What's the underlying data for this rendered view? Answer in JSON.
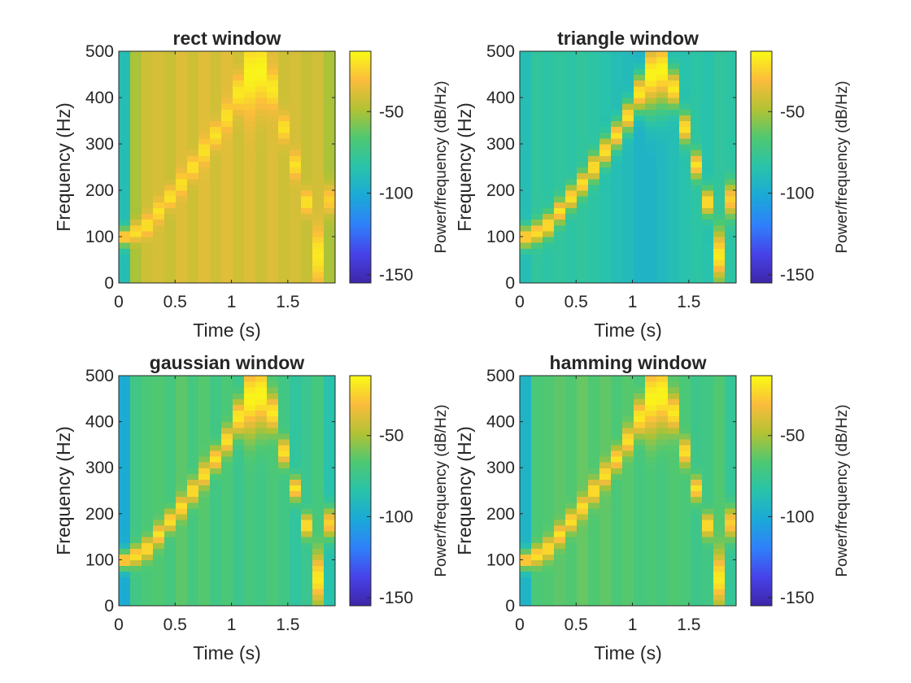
{
  "chart_data": [
    {
      "type": "heatmap",
      "title": "rect window",
      "xlabel": "Time (s)",
      "ylabel": "Frequency (Hz)",
      "xlim": [
        0,
        1.92
      ],
      "ylim": [
        0,
        500
      ],
      "xticks": [
        0,
        0.5,
        1,
        1.5
      ],
      "xtick_labels": [
        "0",
        "0.5",
        "1",
        "1.5"
      ],
      "yticks": [
        0,
        100,
        200,
        300,
        400,
        500
      ],
      "ytick_labels": [
        "0",
        "100",
        "200",
        "300",
        "400",
        "500"
      ],
      "colorbar": {
        "label": "Power/frequency (dB/Hz)",
        "range": [
          -155,
          -13
        ],
        "ticks": [
          -50,
          -100,
          -150
        ],
        "tick_labels": [
          "-50",
          "-100",
          "-150"
        ]
      },
      "time_bins": 19,
      "background_db": [
        -88,
        -50,
        -42,
        -40,
        -43,
        -38,
        -42,
        -37,
        -41,
        -37,
        -42,
        -38,
        -42,
        -38,
        -42,
        -40,
        -44,
        -41,
        -50
      ],
      "ridge_frequency_hz": [
        100,
        110,
        125,
        155,
        185,
        215,
        250,
        285,
        320,
        360,
        410,
        450,
        460,
        420,
        335,
        255,
        175,
        60,
        180
      ],
      "peak_db": [
        -22,
        -20,
        -20,
        -20,
        -20,
        -20,
        -20,
        -20,
        -20,
        -20,
        -18,
        -15,
        -15,
        -18,
        -20,
        -20,
        -20,
        -18,
        -25
      ],
      "ridge_width_hz": [
        14,
        14,
        16,
        16,
        16,
        16,
        18,
        18,
        18,
        20,
        28,
        55,
        55,
        28,
        20,
        18,
        18,
        40,
        22
      ]
    },
    {
      "type": "heatmap",
      "title": "triangle window",
      "xlabel": "Time (s)",
      "ylabel": "Frequency (Hz)",
      "xlim": [
        0,
        1.92
      ],
      "ylim": [
        0,
        500
      ],
      "xticks": [
        0,
        0.5,
        1,
        1.5
      ],
      "xtick_labels": [
        "0",
        "0.5",
        "1",
        "1.5"
      ],
      "yticks": [
        0,
        100,
        200,
        300,
        400,
        500
      ],
      "ytick_labels": [
        "0",
        "100",
        "200",
        "300",
        "400",
        "500"
      ],
      "colorbar": {
        "label": "Power/frequency (dB/Hz)",
        "range": [
          -155,
          -13
        ],
        "ticks": [
          -50,
          -100,
          -150
        ],
        "tick_labels": [
          "-50",
          "-100",
          "-150"
        ]
      },
      "time_bins": 19,
      "background_db": [
        -88,
        -80,
        -82,
        -80,
        -82,
        -80,
        -82,
        -85,
        -88,
        -90,
        -95,
        -95,
        -92,
        -88,
        -85,
        -82,
        -85,
        -80,
        -82
      ],
      "ridge_frequency_hz": [
        100,
        110,
        125,
        155,
        185,
        215,
        250,
        285,
        320,
        360,
        410,
        450,
        460,
        420,
        335,
        255,
        175,
        60,
        180
      ],
      "peak_db": [
        -22,
        -20,
        -20,
        -20,
        -20,
        -20,
        -20,
        -20,
        -20,
        -20,
        -18,
        -15,
        -15,
        -18,
        -20,
        -20,
        -20,
        -18,
        -25
      ],
      "ridge_width_hz": [
        16,
        16,
        18,
        18,
        18,
        18,
        20,
        20,
        20,
        22,
        28,
        55,
        55,
        28,
        22,
        20,
        20,
        40,
        26
      ]
    },
    {
      "type": "heatmap",
      "title": "gaussian window",
      "xlabel": "Time (s)",
      "ylabel": "Frequency (Hz)",
      "xlim": [
        0,
        1.92
      ],
      "ylim": [
        0,
        500
      ],
      "xticks": [
        0,
        0.5,
        1,
        1.5
      ],
      "xtick_labels": [
        "0",
        "0.5",
        "1",
        "1.5"
      ],
      "yticks": [
        0,
        100,
        200,
        300,
        400,
        500
      ],
      "ytick_labels": [
        "0",
        "100",
        "200",
        "300",
        "400",
        "500"
      ],
      "colorbar": {
        "label": "Power/frequency (dB/Hz)",
        "range": [
          -155,
          -13
        ],
        "ticks": [
          -50,
          -100,
          -150
        ],
        "tick_labels": [
          "-50",
          "-100",
          "-150"
        ]
      },
      "time_bins": 19,
      "background_db": [
        -100,
        -72,
        -68,
        -66,
        -70,
        -64,
        -70,
        -65,
        -72,
        -68,
        -75,
        -70,
        -72,
        -68,
        -72,
        -80,
        -76,
        -70,
        -85
      ],
      "ridge_frequency_hz": [
        100,
        110,
        125,
        155,
        185,
        215,
        250,
        285,
        320,
        360,
        410,
        450,
        460,
        420,
        335,
        255,
        175,
        60,
        180
      ],
      "peak_db": [
        -22,
        -20,
        -20,
        -20,
        -20,
        -20,
        -20,
        -20,
        -20,
        -20,
        -18,
        -15,
        -15,
        -18,
        -20,
        -20,
        -20,
        -18,
        -25
      ],
      "ridge_width_hz": [
        15,
        15,
        16,
        16,
        16,
        16,
        18,
        18,
        18,
        20,
        28,
        55,
        55,
        28,
        20,
        18,
        18,
        40,
        24
      ]
    },
    {
      "type": "heatmap",
      "title": "hamming window",
      "xlabel": "Time (s)",
      "ylabel": "Frequency (Hz)",
      "xlim": [
        0,
        1.92
      ],
      "ylim": [
        0,
        500
      ],
      "xticks": [
        0,
        0.5,
        1,
        1.5
      ],
      "xtick_labels": [
        "0",
        "0.5",
        "1",
        "1.5"
      ],
      "yticks": [
        0,
        100,
        200,
        300,
        400,
        500
      ],
      "ytick_labels": [
        "0",
        "100",
        "200",
        "300",
        "400",
        "500"
      ],
      "colorbar": {
        "label": "Power/frequency (dB/Hz)",
        "range": [
          -155,
          -13
        ],
        "ticks": [
          -50,
          -100,
          -150
        ],
        "tick_labels": [
          "-50",
          "-100",
          "-150"
        ]
      },
      "time_bins": 19,
      "background_db": [
        -95,
        -68,
        -66,
        -64,
        -66,
        -62,
        -66,
        -63,
        -68,
        -65,
        -70,
        -68,
        -70,
        -66,
        -68,
        -74,
        -72,
        -66,
        -78
      ],
      "ridge_frequency_hz": [
        100,
        110,
        125,
        155,
        185,
        215,
        250,
        285,
        320,
        360,
        410,
        450,
        460,
        420,
        335,
        255,
        175,
        60,
        180
      ],
      "peak_db": [
        -22,
        -20,
        -20,
        -20,
        -20,
        -20,
        -20,
        -20,
        -20,
        -20,
        -18,
        -15,
        -15,
        -18,
        -20,
        -20,
        -20,
        -18,
        -25
      ],
      "ridge_width_hz": [
        15,
        15,
        16,
        16,
        16,
        16,
        18,
        18,
        18,
        20,
        28,
        55,
        55,
        28,
        20,
        18,
        18,
        40,
        24
      ]
    }
  ]
}
